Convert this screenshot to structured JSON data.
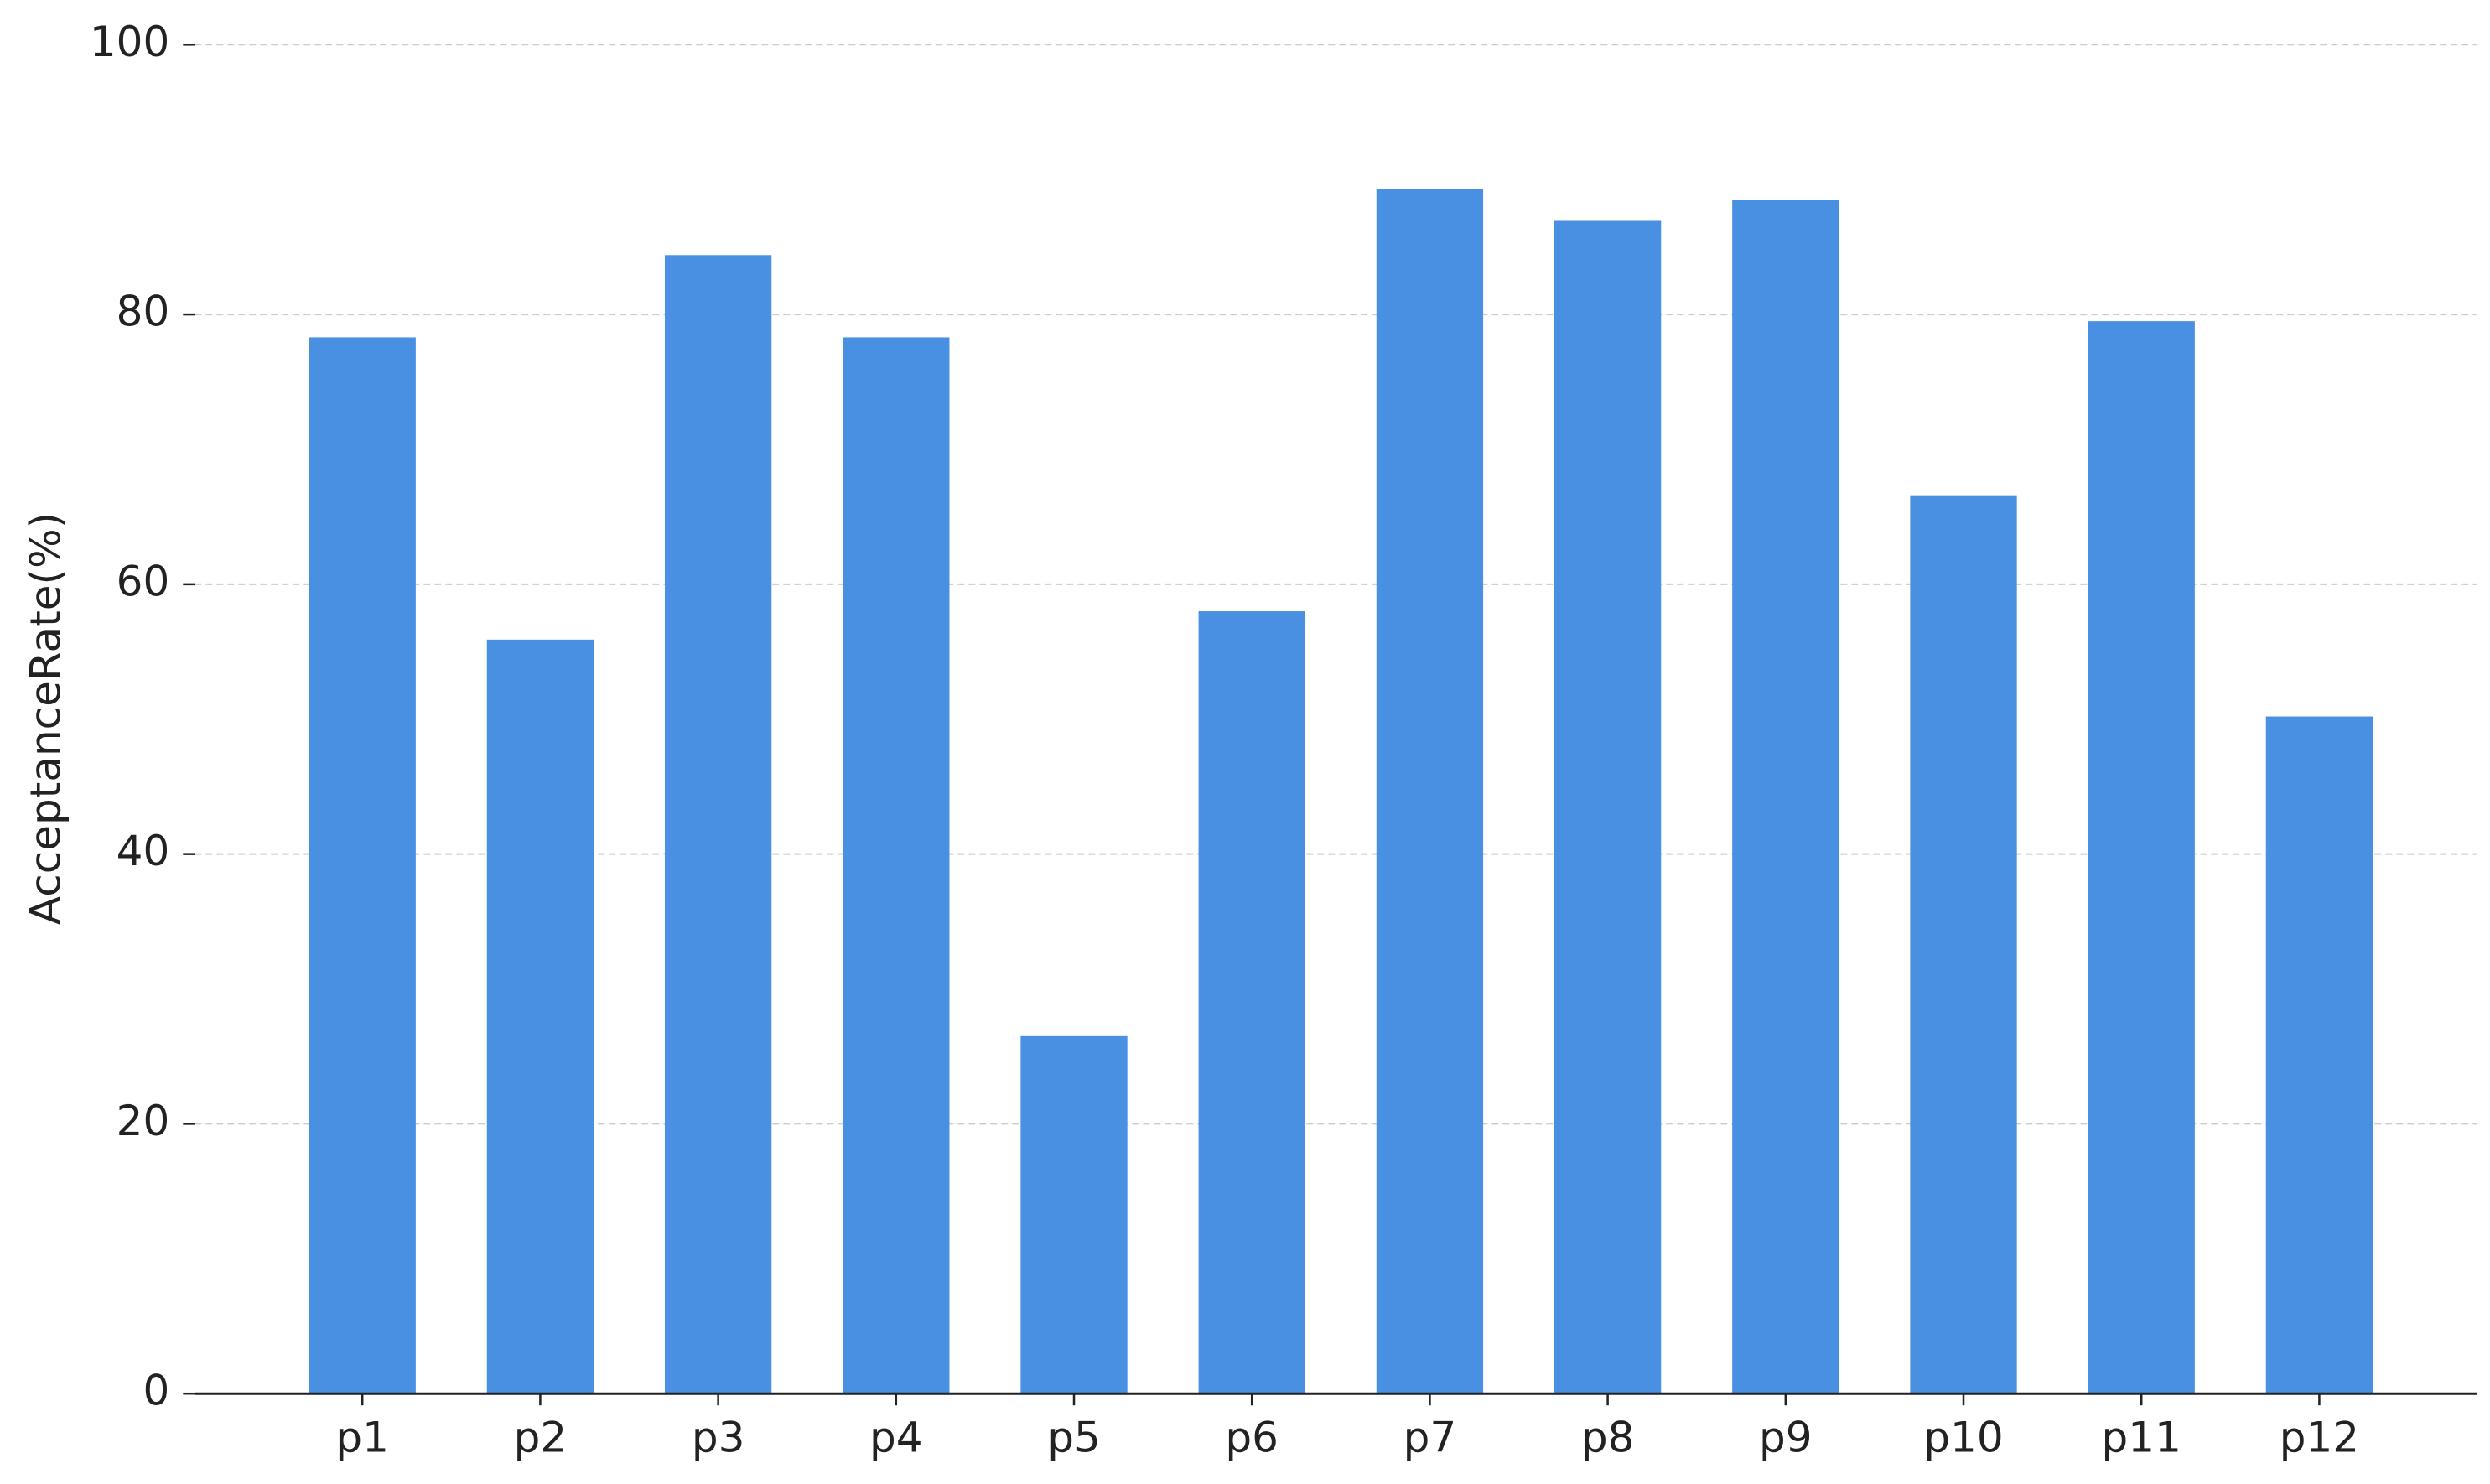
{
  "chart_data": {
    "type": "bar",
    "ylabel": "AcceptanceRate(%)",
    "categories": [
      "p1",
      "p2",
      "p3",
      "p4",
      "p5",
      "p6",
      "p7",
      "p8",
      "p9",
      "p10",
      "p11",
      "p12"
    ],
    "values": [
      78.3,
      55.9,
      84.4,
      78.3,
      26.5,
      58.0,
      89.3,
      87.0,
      88.5,
      66.6,
      79.5,
      50.2
    ],
    "color": "#4a90e2",
    "ylim": [
      0,
      100
    ],
    "yticks": [
      0,
      20,
      40,
      60,
      80,
      100
    ],
    "grid": true
  }
}
